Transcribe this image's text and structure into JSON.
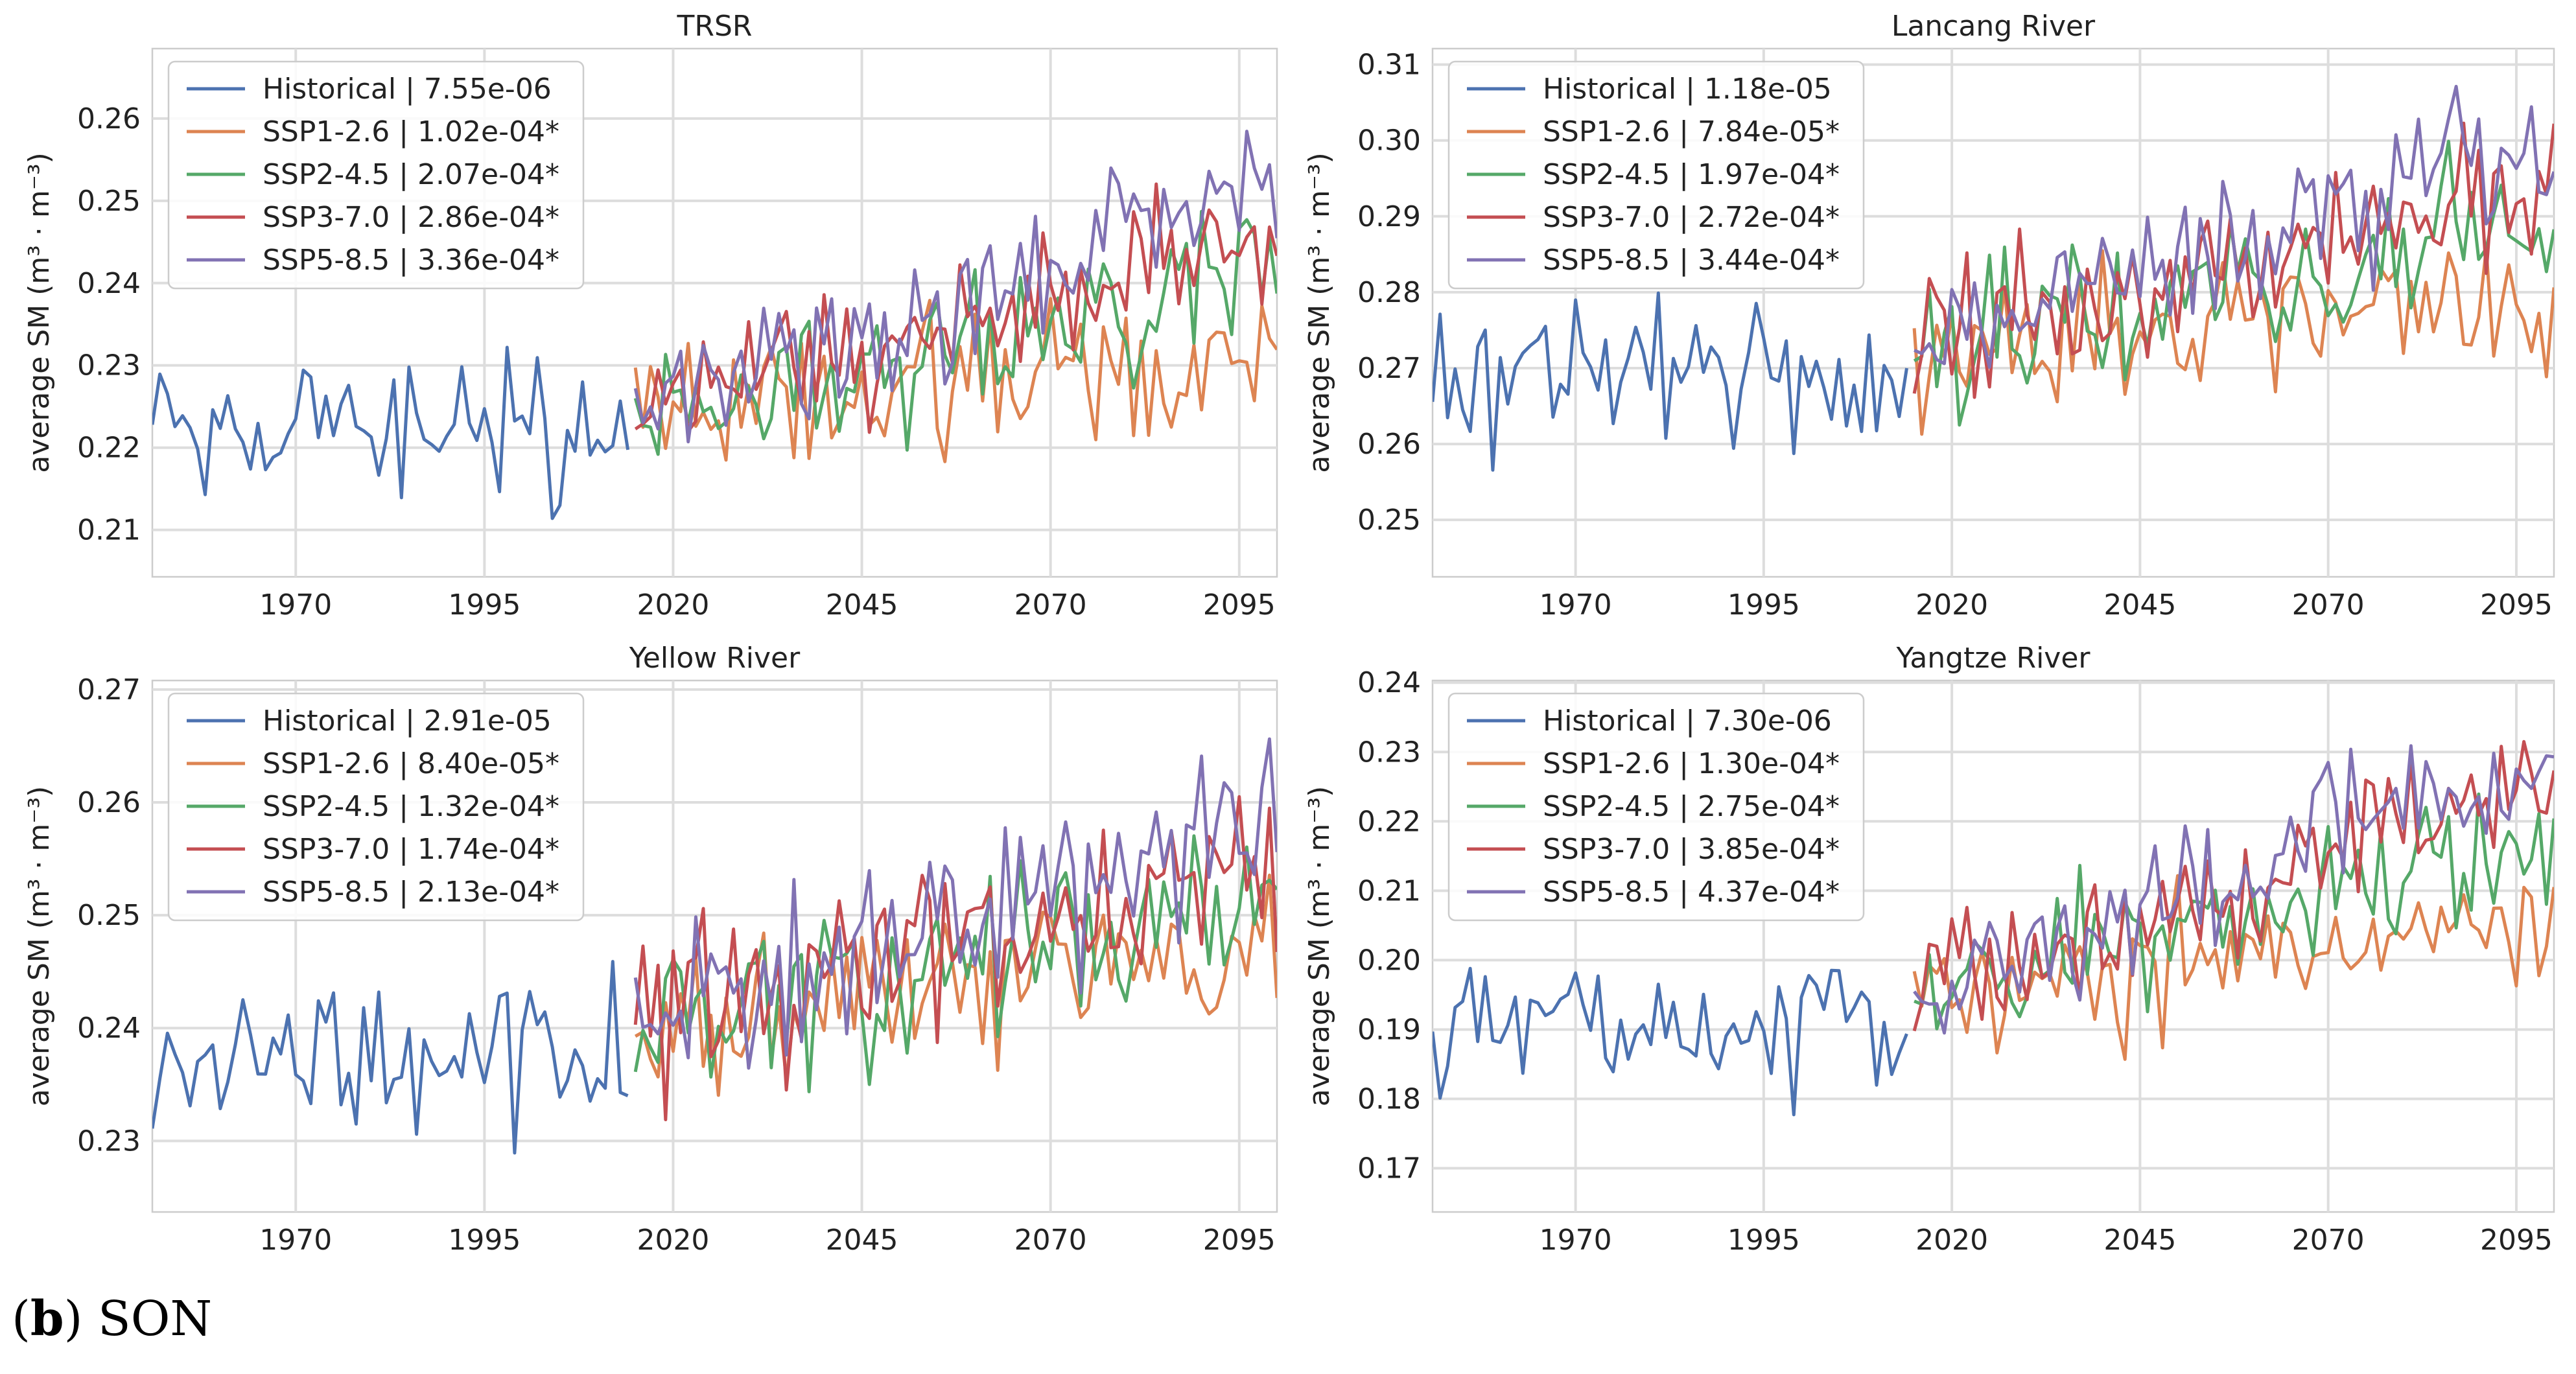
{
  "caption": {
    "label": "b",
    "suffix": "SON"
  },
  "colors": {
    "Historical": "#4c72b0",
    "SSP1-2.6": "#dd8452",
    "SSP2-4.5": "#55a868",
    "SSP3-7.0": "#c44e52",
    "SSP5-8.5": "#8172b3",
    "grid": "#dddddd",
    "legend_border": "#cccccc"
  },
  "chart_data": [
    {
      "type": "line",
      "title": "TRSR",
      "ylabel": "average SM (m³ · m⁻³)",
      "xlabel": "",
      "xlim": [
        1951,
        2100
      ],
      "ylim": [
        0.2043,
        0.2685
      ],
      "xticks": [
        1970,
        1995,
        2020,
        2045,
        2070,
        2095
      ],
      "yticks": [
        0.21,
        0.22,
        0.23,
        0.24,
        0.25,
        0.26
      ],
      "ytick_labels": [
        "0.21",
        "0.22",
        "0.23",
        "0.24",
        "0.25",
        "0.26"
      ],
      "grid": true,
      "legend_position": "upper-left",
      "series": [
        {
          "name": "Historical",
          "label": "Historical | 7.55e-06",
          "trend": 7.55e-06,
          "start": 1951,
          "end": 2014,
          "level": 0.2215,
          "amp": 0.0065,
          "seed": 11
        },
        {
          "name": "SSP1-2.6",
          "label": "SSP1-2.6 | 1.02e-04*",
          "trend": 0.000102,
          "start": 2015,
          "end": 2100,
          "level": 0.2235,
          "amp": 0.0065,
          "seed": 21
        },
        {
          "name": "SSP2-4.5",
          "label": "SSP2-4.5 | 2.07e-04*",
          "trend": 0.000207,
          "start": 2015,
          "end": 2100,
          "level": 0.2235,
          "amp": 0.0065,
          "seed": 31
        },
        {
          "name": "SSP3-7.0",
          "label": "SSP3-7.0 | 2.86e-04*",
          "trend": 0.000286,
          "start": 2015,
          "end": 2100,
          "level": 0.2235,
          "amp": 0.0065,
          "seed": 41
        },
        {
          "name": "SSP5-8.5",
          "label": "SSP5-8.5 | 3.36e-04*",
          "trend": 0.000336,
          "start": 2015,
          "end": 2100,
          "level": 0.2235,
          "amp": 0.0065,
          "seed": 51
        }
      ]
    },
    {
      "type": "line",
      "title": "Lancang River",
      "ylabel": "average SM (m³ · m⁻³)",
      "xlabel": "",
      "xlim": [
        1951,
        2100
      ],
      "ylim": [
        0.2425,
        0.3121
      ],
      "xticks": [
        1970,
        1995,
        2020,
        2045,
        2070,
        2095
      ],
      "yticks": [
        0.25,
        0.26,
        0.27,
        0.28,
        0.29,
        0.3,
        0.31
      ],
      "ytick_labels": [
        "0.25",
        "0.26",
        "0.27",
        "0.28",
        "0.29",
        "0.30",
        "0.31"
      ],
      "grid": true,
      "legend_position": "upper-left",
      "series": [
        {
          "name": "Historical",
          "label": "Historical | 1.18e-05",
          "trend": 1.18e-05,
          "start": 1951,
          "end": 2014,
          "level": 0.2685,
          "amp": 0.0075,
          "seed": 12
        },
        {
          "name": "SSP1-2.6",
          "label": "SSP1-2.6 | 7.84e-05*",
          "trend": 7.84e-05,
          "start": 2015,
          "end": 2100,
          "level": 0.2725,
          "amp": 0.0075,
          "seed": 22
        },
        {
          "name": "SSP2-4.5",
          "label": "SSP2-4.5 | 1.97e-04*",
          "trend": 0.000197,
          "start": 2015,
          "end": 2100,
          "level": 0.2725,
          "amp": 0.0075,
          "seed": 32
        },
        {
          "name": "SSP3-7.0",
          "label": "SSP3-7.0 | 2.72e-04*",
          "trend": 0.000272,
          "start": 2015,
          "end": 2100,
          "level": 0.2725,
          "amp": 0.0075,
          "seed": 42
        },
        {
          "name": "SSP5-8.5",
          "label": "SSP5-8.5 | 3.44e-04*",
          "trend": 0.000344,
          "start": 2015,
          "end": 2100,
          "level": 0.2725,
          "amp": 0.0075,
          "seed": 52
        }
      ]
    },
    {
      "type": "line",
      "title": "Yellow River",
      "ylabel": "average SM (m³ · m⁻³)",
      "xlabel": "",
      "xlim": [
        1951,
        2100
      ],
      "ylim": [
        0.2237,
        0.2708
      ],
      "xticks": [
        1970,
        1995,
        2020,
        2045,
        2070,
        2095
      ],
      "yticks": [
        0.23,
        0.24,
        0.25,
        0.26,
        0.27
      ],
      "ytick_labels": [
        "0.23",
        "0.24",
        "0.25",
        "0.26",
        "0.27"
      ],
      "grid": true,
      "legend_position": "upper-left",
      "series": [
        {
          "name": "Historical",
          "label": "Historical | 2.91e-05",
          "trend": 2.91e-05,
          "start": 1951,
          "end": 2014,
          "level": 0.2365,
          "amp": 0.0055,
          "seed": 13
        },
        {
          "name": "SSP1-2.6",
          "label": "SSP1-2.6 | 8.40e-05*",
          "trend": 8.4e-05,
          "start": 2015,
          "end": 2100,
          "level": 0.2405,
          "amp": 0.0055,
          "seed": 23
        },
        {
          "name": "SSP2-4.5",
          "label": "SSP2-4.5 | 1.32e-04*",
          "trend": 0.000132,
          "start": 2015,
          "end": 2100,
          "level": 0.2405,
          "amp": 0.0055,
          "seed": 33
        },
        {
          "name": "SSP3-7.0",
          "label": "SSP3-7.0 | 1.74e-04*",
          "trend": 0.000174,
          "start": 2015,
          "end": 2100,
          "level": 0.2405,
          "amp": 0.0055,
          "seed": 43
        },
        {
          "name": "SSP5-8.5",
          "label": "SSP5-8.5 | 2.13e-04*",
          "trend": 0.000213,
          "start": 2015,
          "end": 2100,
          "level": 0.2405,
          "amp": 0.0055,
          "seed": 53
        }
      ]
    },
    {
      "type": "line",
      "title": "Yangtze River",
      "ylabel": "average SM (m³ · m⁻³)",
      "xlabel": "",
      "xlim": [
        1951,
        2100
      ],
      "ylim": [
        0.1637,
        0.2403
      ],
      "xticks": [
        1970,
        1995,
        2020,
        2045,
        2070,
        2095
      ],
      "yticks": [
        0.17,
        0.18,
        0.19,
        0.2,
        0.21,
        0.22,
        0.23,
        0.24
      ],
      "ytick_labels": [
        "0.17",
        "0.18",
        "0.19",
        "0.20",
        "0.21",
        "0.22",
        "0.23",
        "0.24"
      ],
      "grid": true,
      "legend_position": "upper-left",
      "series": [
        {
          "name": "Historical",
          "label": "Historical | 7.30e-06",
          "trend": 7.3e-06,
          "start": 1951,
          "end": 2014,
          "level": 0.1915,
          "amp": 0.0075,
          "seed": 14
        },
        {
          "name": "SSP1-2.6",
          "label": "SSP1-2.6 | 1.30e-04*",
          "trend": 0.00013,
          "start": 2015,
          "end": 2100,
          "level": 0.1945,
          "amp": 0.0075,
          "seed": 24
        },
        {
          "name": "SSP2-4.5",
          "label": "SSP2-4.5 | 2.75e-04*",
          "trend": 0.000275,
          "start": 2015,
          "end": 2100,
          "level": 0.1945,
          "amp": 0.0075,
          "seed": 34
        },
        {
          "name": "SSP3-7.0",
          "label": "SSP3-7.0 | 3.85e-04*",
          "trend": 0.000385,
          "start": 2015,
          "end": 2100,
          "level": 0.1945,
          "amp": 0.0075,
          "seed": 44
        },
        {
          "name": "SSP5-8.5",
          "label": "SSP5-8.5 | 4.37e-04*",
          "trend": 0.000437,
          "start": 2015,
          "end": 2100,
          "level": 0.1945,
          "amp": 0.0075,
          "seed": 54
        }
      ]
    }
  ]
}
